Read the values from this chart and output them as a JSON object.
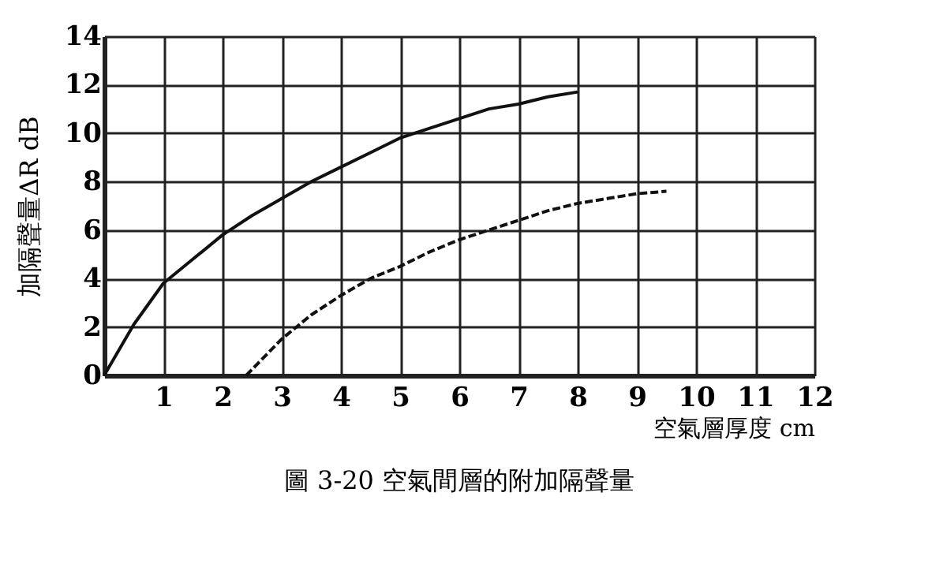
{
  "chart_data": {
    "type": "line",
    "xlabel": "空氣層厚度 cm",
    "ylabel": "加隔聲量ΔR dB",
    "annotations": [
      "圖 3-20 空氣間層的附加隔聲量"
    ],
    "series": [
      {
        "color": "#111111",
        "line_style": "solid",
        "x": [
          0,
          0.5,
          1,
          1.5,
          2,
          2.5,
          3,
          3.5,
          4,
          4.5,
          5,
          5.5,
          6,
          6.5,
          7,
          7.5,
          8
        ],
        "values": [
          0,
          2.1,
          3.8,
          4.8,
          5.8,
          6.6,
          7.3,
          8,
          8.6,
          9.2,
          9.8,
          10.2,
          10.6,
          11,
          11.2,
          11.5,
          11.7
        ]
      },
      {
        "color": "#111111",
        "line_style": "dashed",
        "x": [
          2.4,
          3,
          3.5,
          4,
          4.5,
          5,
          5.5,
          6,
          6.5,
          7,
          7.5,
          8,
          8.5,
          9,
          9.5
        ],
        "values": [
          0,
          1.5,
          2.5,
          3.3,
          4,
          4.5,
          5.1,
          5.6,
          6,
          6.4,
          6.8,
          7.1,
          7.3,
          7.5,
          7.6
        ]
      }
    ],
    "xlim": [
      0,
      12
    ],
    "ylim": [
      0,
      14
    ],
    "xticks": [
      {
        "value": 0,
        "label": null
      },
      1,
      2,
      3,
      4,
      5,
      6,
      7,
      8,
      9,
      10,
      11,
      12
    ],
    "yticks": [
      0,
      2,
      4,
      6,
      8,
      10,
      12,
      14
    ],
    "grid": true,
    "marker": "none"
  }
}
